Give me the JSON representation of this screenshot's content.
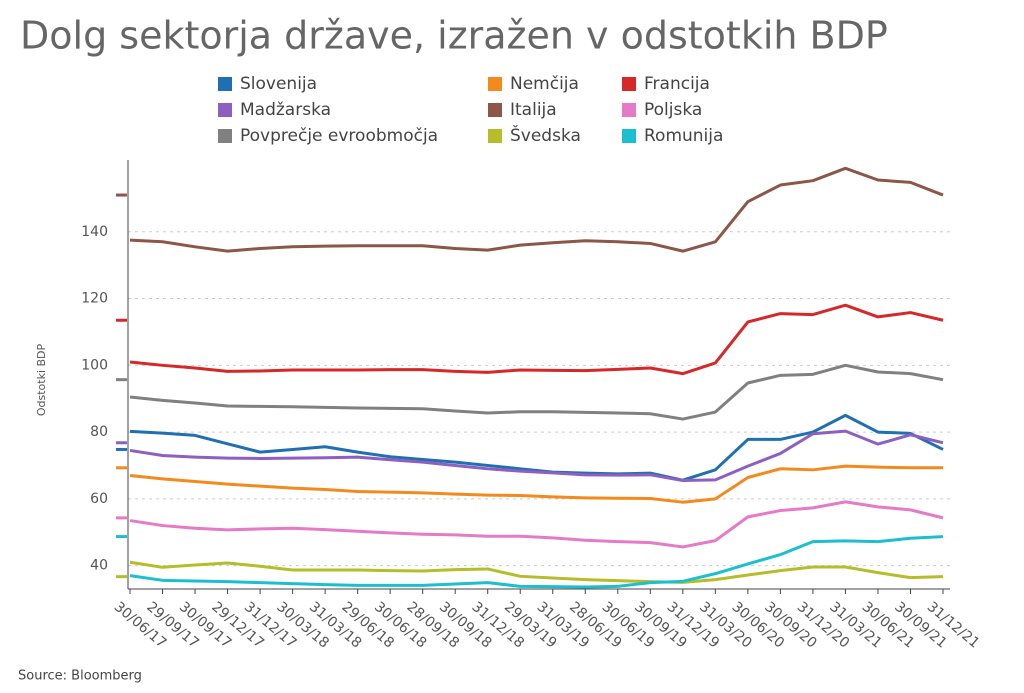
{
  "chart_data": {
    "type": "line",
    "title": "Dolg sektorja države, izražen v odstotkih BDP",
    "y_label": "Odstotki BDP",
    "source": "Source: Bloomberg",
    "categories": [
      "30/06/17",
      "29/09/17",
      "30/09/17",
      "29/12/17",
      "31/12/17",
      "30/03/18",
      "31/03/18",
      "29/06/18",
      "30/06/18",
      "28/09/18",
      "30/09/18",
      "31/12/18",
      "29/03/19",
      "31/03/19",
      "28/06/19",
      "30/06/19",
      "30/09/19",
      "31/12/19",
      "31/03/20",
      "30/06/20",
      "30/09/20",
      "31/12/20",
      "31/03/21",
      "30/06/21",
      "30/09/21",
      "31/12/21"
    ],
    "ylim": [
      33,
      160
    ],
    "yticks": [
      40,
      60,
      80,
      100,
      120,
      140
    ],
    "grid": true,
    "series": [
      {
        "name": "Slovenija",
        "color": "#1f6fb2",
        "values": [
          80.2,
          79.7,
          79,
          76.5,
          74,
          74.8,
          75.6,
          74,
          72.6,
          71.8,
          71,
          70,
          69,
          68,
          67.7,
          67.5,
          67.7,
          65.6,
          68.7,
          77.8,
          77.8,
          80,
          85,
          80,
          79.6,
          74.8
        ]
      },
      {
        "name": "Nemčija",
        "color": "#f28a1e",
        "values": [
          67,
          66,
          65.2,
          64.4,
          63.8,
          63.2,
          62.8,
          62.2,
          62,
          61.8,
          61.4,
          61.1,
          61,
          60.6,
          60.3,
          60.2,
          60.1,
          59,
          60,
          66.4,
          69,
          68.7,
          69.8,
          69.5,
          69.3,
          69.3
        ]
      },
      {
        "name": "Francija",
        "color": "#d62828",
        "values": [
          101,
          100,
          99.2,
          98.2,
          98.3,
          98.6,
          98.6,
          98.6,
          98.7,
          98.7,
          98.2,
          97.9,
          98.6,
          98.5,
          98.4,
          98.8,
          99.2,
          97.5,
          100.7,
          113,
          115.5,
          115.2,
          118,
          114.5,
          115.8,
          113.5
        ]
      },
      {
        "name": "Madžarska",
        "color": "#8e5fc1",
        "values": [
          74.5,
          73,
          72.5,
          72.2,
          72.1,
          72.2,
          72.3,
          72.5,
          71.7,
          71,
          70,
          69,
          68.3,
          67.8,
          67.2,
          67.1,
          67.2,
          65.5,
          65.7,
          69.8,
          73.6,
          79.5,
          80.3,
          76.4,
          79.2,
          76.8
        ]
      },
      {
        "name": "Italija",
        "color": "#8c5648",
        "values": [
          137.5,
          137,
          135.5,
          134.2,
          135,
          135.5,
          135.7,
          135.8,
          135.8,
          135.8,
          135,
          134.5,
          136,
          136.7,
          137.3,
          137,
          136.5,
          134.2,
          137,
          149,
          154,
          155.3,
          159,
          155.5,
          154.8,
          151
        ]
      },
      {
        "name": "Poljska",
        "color": "#e57ac6",
        "values": [
          53.5,
          52,
          51.2,
          50.7,
          51,
          51.2,
          50.8,
          50.3,
          49.8,
          49.4,
          49.2,
          48.8,
          48.8,
          48.3,
          47.6,
          47.2,
          46.9,
          45.6,
          47.5,
          54.6,
          56.5,
          57.3,
          59.1,
          57.6,
          56.7,
          54.3
        ]
      },
      {
        "name": "Povprečje evroobmočja",
        "color": "#808080",
        "values": [
          90.5,
          89.5,
          88.7,
          87.8,
          87.7,
          87.6,
          87.4,
          87.2,
          87.1,
          87,
          86.3,
          85.7,
          86.1,
          86.1,
          85.9,
          85.7,
          85.5,
          83.9,
          86,
          94.7,
          97,
          97.3,
          100,
          98,
          97.5,
          95.7
        ]
      },
      {
        "name": "Švedska",
        "color": "#b5bd2a",
        "values": [
          41,
          39.5,
          40.2,
          40.8,
          39.8,
          38.7,
          38.7,
          38.7,
          38.5,
          38.4,
          38.8,
          39,
          36.8,
          36.3,
          35.8,
          35.5,
          35.2,
          35,
          35.8,
          37.2,
          38.5,
          39.6,
          39.6,
          37.9,
          36.4,
          36.7
        ]
      },
      {
        "name": "Romunija",
        "color": "#1bbfcf",
        "values": [
          37,
          35.6,
          35.4,
          35.2,
          34.9,
          34.6,
          34.3,
          34.1,
          34.1,
          34.1,
          34.5,
          34.9,
          33.8,
          33.7,
          33.6,
          33.8,
          34.9,
          35.3,
          37.6,
          40.5,
          43.3,
          47.2,
          47.4,
          47.2,
          48.2,
          48.7
        ]
      }
    ]
  }
}
